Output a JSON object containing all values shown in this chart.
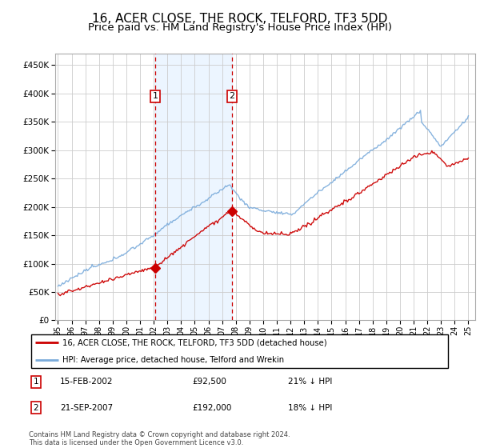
{
  "title": "16, ACER CLOSE, THE ROCK, TELFORD, TF3 5DD",
  "subtitle": "Price paid vs. HM Land Registry's House Price Index (HPI)",
  "title_fontsize": 11,
  "subtitle_fontsize": 9.5,
  "ylim": [
    0,
    470000
  ],
  "yticks": [
    0,
    50000,
    100000,
    150000,
    200000,
    250000,
    300000,
    350000,
    400000,
    450000
  ],
  "ytick_labels": [
    "£0",
    "£50K",
    "£100K",
    "£150K",
    "£200K",
    "£250K",
    "£300K",
    "£350K",
    "£400K",
    "£450K"
  ],
  "background_color": "#ffffff",
  "plot_bg_color": "#ffffff",
  "grid_color": "#cccccc",
  "sale1_date_x": 2002.12,
  "sale1_price": 92500,
  "sale1_label": "1",
  "sale1_date_str": "15-FEB-2002",
  "sale1_price_str": "£92,500",
  "sale1_hpi_str": "21% ↓ HPI",
  "sale2_date_x": 2007.72,
  "sale2_price": 192000,
  "sale2_label": "2",
  "sale2_date_str": "21-SEP-2007",
  "sale2_price_str": "£192,000",
  "sale2_hpi_str": "18% ↓ HPI",
  "red_line_color": "#cc0000",
  "blue_line_color": "#7aabdb",
  "shade_color": "#ddeeff",
  "marker_box_color": "#cc0000",
  "marker_dot_color": "#cc0000",
  "legend_label_red": "16, ACER CLOSE, THE ROCK, TELFORD, TF3 5DD (detached house)",
  "legend_label_blue": "HPI: Average price, detached house, Telford and Wrekin",
  "footer": "Contains HM Land Registry data © Crown copyright and database right 2024.\nThis data is licensed under the Open Government Licence v3.0.",
  "xtick_years": [
    1995,
    1996,
    1997,
    1998,
    1999,
    2000,
    2001,
    2002,
    2003,
    2004,
    2005,
    2006,
    2007,
    2008,
    2009,
    2010,
    2011,
    2012,
    2013,
    2014,
    2015,
    2016,
    2017,
    2018,
    2019,
    2020,
    2021,
    2022,
    2023,
    2024,
    2025
  ],
  "xlim_left": 1994.8,
  "xlim_right": 2025.5
}
